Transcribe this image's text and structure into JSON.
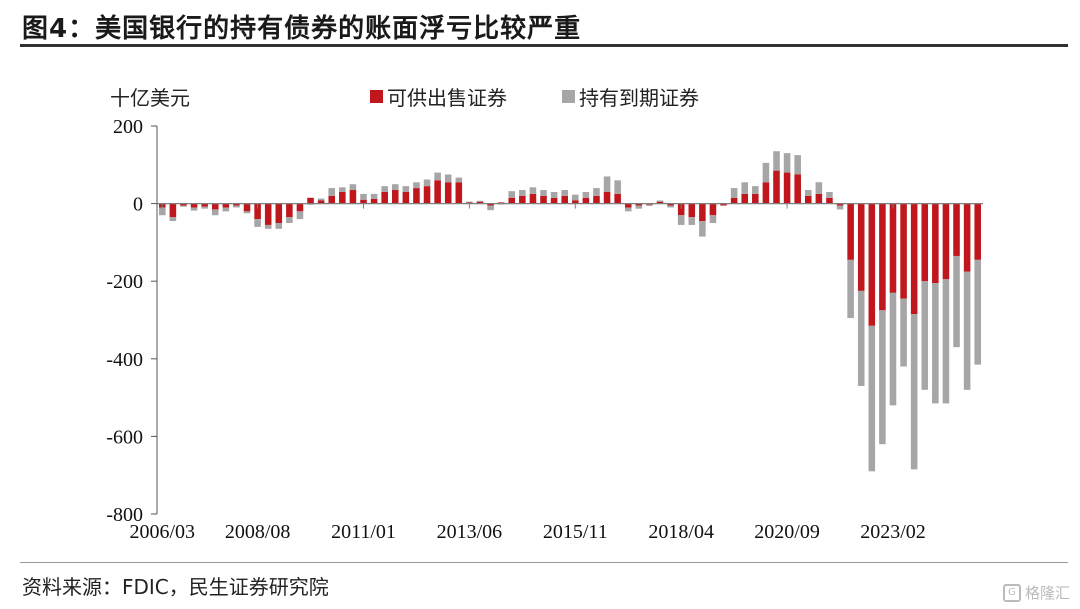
{
  "figure": {
    "title": "图4：美国银行的持有债券的账面浮亏比较严重",
    "source": "资料来源：FDIC，民生证券研究院",
    "watermark": "格隆汇"
  },
  "colors": {
    "afs": "#c0171d",
    "htm": "#a6a6a6"
  },
  "chart_data": {
    "type": "bar",
    "stacked": true,
    "unit_label": "十亿美元",
    "xlabel": "",
    "ylabel": "",
    "ylim": [
      -800,
      200
    ],
    "yticks": [
      "200",
      "0",
      "-200",
      "-400",
      "-600",
      "-800"
    ],
    "xtick_labels": [
      "2006/03",
      "2008/08",
      "2011/01",
      "2013/06",
      "2015/11",
      "2018/04",
      "2020/09",
      "2023/02"
    ],
    "xtick_index": [
      0,
      9,
      19,
      29,
      39,
      49,
      59,
      69
    ],
    "legend_position": "top-center",
    "series": [
      {
        "name": "可供出售证券",
        "values": [
          -10,
          -35,
          -5,
          -10,
          -8,
          -15,
          -10,
          -5,
          -20,
          -40,
          -55,
          -50,
          -35,
          -20,
          15,
          8,
          20,
          30,
          35,
          10,
          12,
          30,
          35,
          30,
          40,
          45,
          60,
          55,
          55,
          3,
          5,
          -5,
          3,
          15,
          20,
          25,
          20,
          15,
          20,
          8,
          15,
          20,
          30,
          25,
          -10,
          -5,
          -3,
          5,
          -5,
          -30,
          -35,
          -45,
          -30,
          -5,
          15,
          25,
          25,
          55,
          85,
          80,
          75,
          20,
          25,
          15,
          -5,
          -145,
          -225,
          -315,
          -275,
          -230,
          -245,
          -285,
          -200,
          -205,
          -195,
          -135,
          -175,
          -145
        ]
      },
      {
        "name": "持有到期证券",
        "values": [
          -20,
          -10,
          -3,
          -8,
          -5,
          -15,
          -10,
          -5,
          -5,
          -20,
          -10,
          -15,
          -15,
          -20,
          -3,
          5,
          20,
          12,
          15,
          15,
          13,
          15,
          15,
          15,
          15,
          17,
          20,
          20,
          12,
          2,
          2,
          -12,
          -2,
          17,
          15,
          17,
          15,
          15,
          15,
          15,
          15,
          20,
          40,
          35,
          -10,
          -8,
          -3,
          3,
          -5,
          -25,
          -20,
          -40,
          -20,
          0,
          25,
          30,
          20,
          50,
          50,
          50,
          50,
          15,
          30,
          15,
          -10,
          -150,
          -245,
          -375,
          -345,
          -290,
          -175,
          -400,
          -280,
          -310,
          -320,
          -235,
          -305,
          -270
        ]
      }
    ]
  }
}
